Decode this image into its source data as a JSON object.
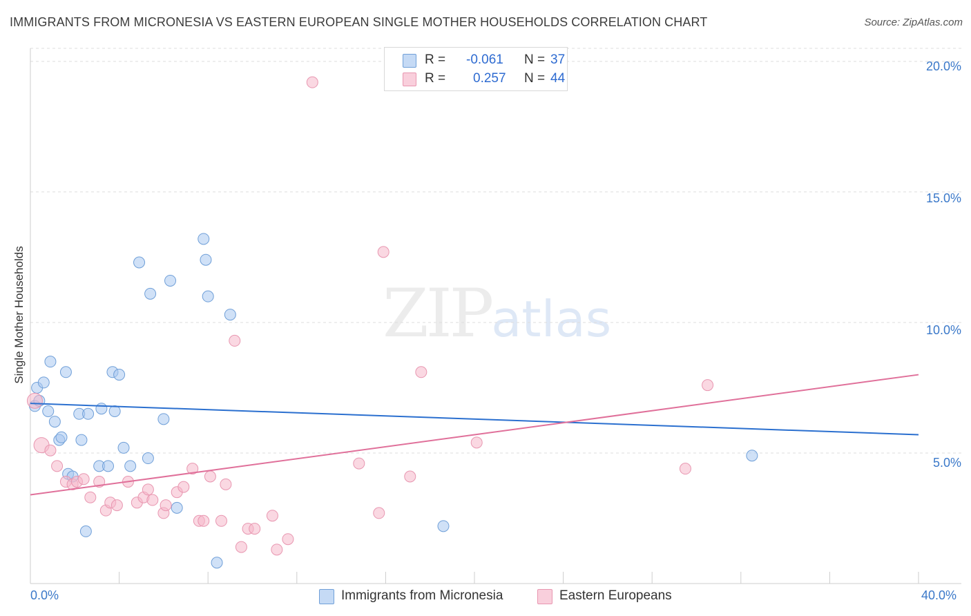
{
  "title": "IMMIGRANTS FROM MICRONESIA VS EASTERN EUROPEAN SINGLE MOTHER HOUSEHOLDS CORRELATION CHART",
  "source": "Source: ZipAtlas.com",
  "watermark": {
    "zip": "ZIP",
    "atlas": "atlas"
  },
  "legend": {
    "r_label": "R =",
    "n_label": "N =",
    "rows": [
      {
        "r": "-0.061",
        "n": "37"
      },
      {
        "r": "0.257",
        "n": "44"
      }
    ]
  },
  "colors": {
    "blue_fill": "#a9c8f0",
    "blue_stroke": "#6f9fd8",
    "blue_line": "#2a6fcf",
    "pink_fill": "#f5b8cb",
    "pink_stroke": "#e896b0",
    "pink_line": "#e0709a",
    "tick_text": "#3a78c9",
    "grid": "#dddddd"
  },
  "chart_data": {
    "type": "scatter",
    "title": "IMMIGRANTS FROM MICRONESIA VS EASTERN EUROPEAN SINGLE MOTHER HOUSEHOLDS CORRELATION CHART",
    "xlabel": "",
    "ylabel": "Single Mother Households",
    "xlim": [
      0,
      40
    ],
    "ylim": [
      0,
      20.5
    ],
    "x_tick_labels": [
      "0.0%",
      "40.0%"
    ],
    "y_ticks": [
      5,
      10,
      15,
      20
    ],
    "y_tick_labels": [
      "5.0%",
      "10.0%",
      "15.0%",
      "20.0%"
    ],
    "grid": true,
    "legend_position": "bottom",
    "series": [
      {
        "name": "Immigrants from Micronesia",
        "color": "blue",
        "trend": {
          "x": [
            0,
            40
          ],
          "y": [
            6.9,
            5.7
          ]
        },
        "points": [
          [
            0.2,
            6.8
          ],
          [
            0.3,
            7.5
          ],
          [
            0.4,
            7.0
          ],
          [
            0.6,
            7.7
          ],
          [
            0.8,
            6.6
          ],
          [
            0.9,
            8.5
          ],
          [
            1.1,
            6.2
          ],
          [
            1.3,
            5.5
          ],
          [
            1.4,
            5.6
          ],
          [
            1.6,
            8.1
          ],
          [
            1.7,
            4.2
          ],
          [
            1.9,
            4.1
          ],
          [
            2.2,
            6.5
          ],
          [
            2.3,
            5.5
          ],
          [
            2.5,
            2.0
          ],
          [
            2.6,
            6.5
          ],
          [
            3.1,
            4.5
          ],
          [
            3.2,
            6.7
          ],
          [
            3.5,
            4.5
          ],
          [
            3.7,
            8.1
          ],
          [
            3.8,
            6.6
          ],
          [
            4.0,
            8.0
          ],
          [
            4.2,
            5.2
          ],
          [
            4.5,
            4.5
          ],
          [
            4.9,
            12.3
          ],
          [
            5.3,
            4.8
          ],
          [
            5.4,
            11.1
          ],
          [
            6.0,
            6.3
          ],
          [
            6.3,
            11.6
          ],
          [
            6.6,
            2.9
          ],
          [
            7.8,
            13.2
          ],
          [
            7.9,
            12.4
          ],
          [
            8.0,
            11.0
          ],
          [
            8.4,
            0.8
          ],
          [
            9.0,
            10.3
          ],
          [
            18.6,
            2.2
          ],
          [
            32.5,
            4.9
          ]
        ]
      },
      {
        "name": "Eastern Europeans",
        "color": "pink",
        "trend": {
          "x": [
            0,
            40
          ],
          "y": [
            3.4,
            8.0
          ]
        },
        "points": [
          [
            0.2,
            7.0
          ],
          [
            0.5,
            5.3
          ],
          [
            0.9,
            5.1
          ],
          [
            1.2,
            4.5
          ],
          [
            1.6,
            3.9
          ],
          [
            1.9,
            3.8
          ],
          [
            2.1,
            3.9
          ],
          [
            2.4,
            4.0
          ],
          [
            2.7,
            3.3
          ],
          [
            3.1,
            3.9
          ],
          [
            3.4,
            2.8
          ],
          [
            3.6,
            3.1
          ],
          [
            3.9,
            3.0
          ],
          [
            4.4,
            3.9
          ],
          [
            4.8,
            3.1
          ],
          [
            5.1,
            3.3
          ],
          [
            5.3,
            3.6
          ],
          [
            5.5,
            3.2
          ],
          [
            6.0,
            2.7
          ],
          [
            6.1,
            3.0
          ],
          [
            6.6,
            3.5
          ],
          [
            6.9,
            3.7
          ],
          [
            7.3,
            4.4
          ],
          [
            7.6,
            2.4
          ],
          [
            7.8,
            2.4
          ],
          [
            8.1,
            4.1
          ],
          [
            8.6,
            2.4
          ],
          [
            8.8,
            3.8
          ],
          [
            9.2,
            9.3
          ],
          [
            9.5,
            1.4
          ],
          [
            9.8,
            2.1
          ],
          [
            10.1,
            2.1
          ],
          [
            10.9,
            2.6
          ],
          [
            11.1,
            1.3
          ],
          [
            11.6,
            1.7
          ],
          [
            12.7,
            19.2
          ],
          [
            14.8,
            4.6
          ],
          [
            15.7,
            2.7
          ],
          [
            15.9,
            12.7
          ],
          [
            17.1,
            4.1
          ],
          [
            17.6,
            8.1
          ],
          [
            20.1,
            5.4
          ],
          [
            29.5,
            4.4
          ],
          [
            30.5,
            7.6
          ]
        ]
      }
    ]
  }
}
